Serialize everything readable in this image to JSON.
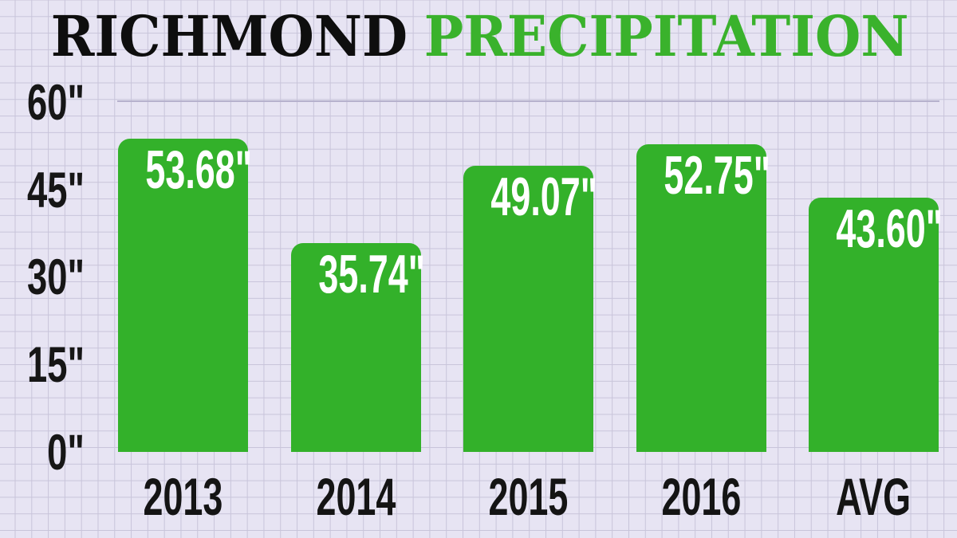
{
  "title": {
    "part1": "RICHMOND",
    "part2": "PRECIPITATION"
  },
  "colors": {
    "background": "#e7e4f3",
    "grid_line": "#c8c4da",
    "top_gridline": "#b6b1cd",
    "bar_green": "#33b12a",
    "title_black": "#0e0e0e",
    "title_green": "#3ab22c",
    "bar_label_text": "#ffffff",
    "axis_text": "#141414"
  },
  "chart_data": {
    "type": "bar",
    "title": "RICHMOND PRECIPITATION",
    "categories": [
      "2013",
      "2014",
      "2015",
      "2016",
      "AVG"
    ],
    "values": [
      53.68,
      35.74,
      49.07,
      52.75,
      43.6
    ],
    "bar_labels": [
      "53.68\"",
      "35.74\"",
      "49.07\"",
      "52.75\"",
      "43.60\""
    ],
    "unit": "inches",
    "xlabel": "",
    "ylabel": "",
    "ylim": [
      0,
      60
    ],
    "yticks": [
      {
        "value": 60,
        "label": "60\""
      },
      {
        "value": 45,
        "label": "45\""
      },
      {
        "value": 30,
        "label": "30\""
      },
      {
        "value": 15,
        "label": "15\""
      },
      {
        "value": 0,
        "label": "0\""
      }
    ],
    "grid": true,
    "legend": false,
    "background_style": "graph-paper"
  }
}
